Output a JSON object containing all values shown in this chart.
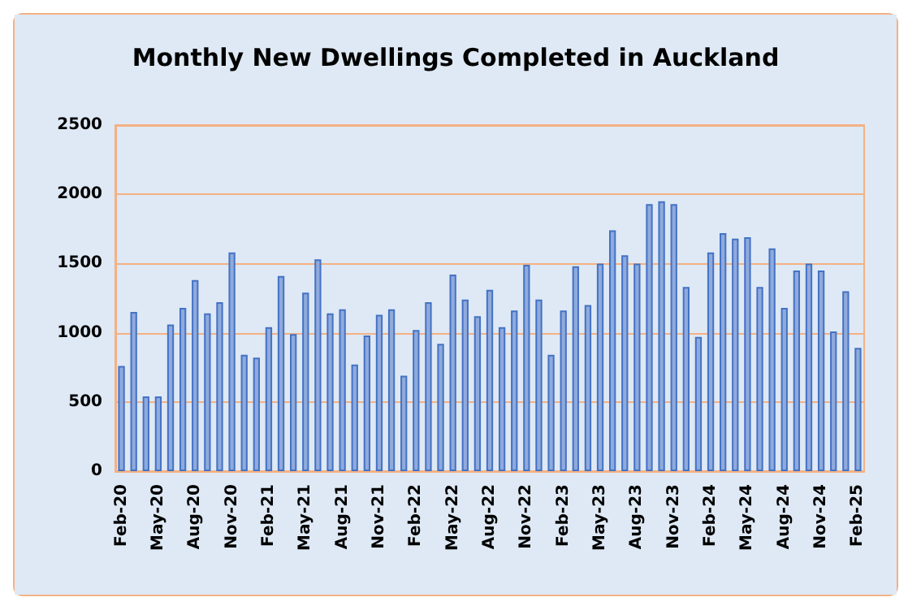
{
  "chart_data": {
    "type": "bar",
    "title": "Monthly New Dwellings Completed in Auckland",
    "categories": [
      "Feb-20",
      null,
      null,
      "May-20",
      null,
      null,
      "Aug-20",
      null,
      null,
      "Nov-20",
      null,
      null,
      "Feb-21",
      null,
      null,
      "May-21",
      null,
      null,
      "Aug-21",
      null,
      null,
      "Nov-21",
      null,
      null,
      "Feb-22",
      null,
      null,
      "May-22",
      null,
      null,
      "Aug-22",
      null,
      null,
      "Nov-22",
      null,
      null,
      "Feb-23",
      null,
      null,
      "May-23",
      null,
      null,
      "Aug-23",
      null,
      null,
      "Nov-23",
      null,
      null,
      "Feb-24",
      null,
      null,
      "May-24",
      null,
      null,
      "Aug-24",
      null,
      null,
      "Nov-24",
      null,
      null,
      "Feb-25"
    ],
    "values": [
      760,
      1150,
      540,
      540,
      1060,
      1180,
      1380,
      1140,
      1220,
      1580,
      840,
      820,
      1040,
      1410,
      990,
      1290,
      1530,
      1140,
      1170,
      770,
      980,
      1130,
      1170,
      690,
      1020,
      1220,
      920,
      1420,
      1240,
      1120,
      1310,
      1040,
      1160,
      1490,
      1240,
      840,
      1160,
      1480,
      1200,
      1500,
      1740,
      1560,
      1500,
      1930,
      1950,
      1930,
      1330,
      970,
      1580,
      1720,
      1680,
      1690,
      1330,
      1610,
      1180,
      1450,
      1500,
      1450,
      1010,
      1300,
      890
    ],
    "color": "#8faadc",
    "ylim": [
      0,
      2500
    ],
    "yticks": [
      0,
      500,
      1000,
      1500,
      2000,
      2500
    ],
    "grid": "y"
  }
}
